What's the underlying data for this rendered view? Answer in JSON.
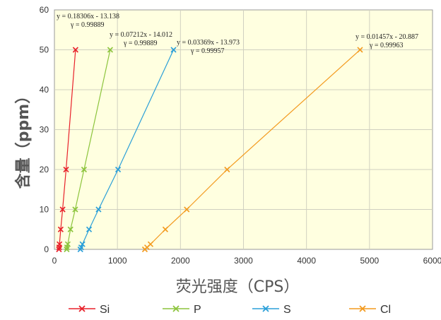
{
  "chart_data": {
    "type": "scatter",
    "xlabel": "荧光强度（CPS）",
    "ylabel": "含量（ppm）",
    "xlim": [
      0,
      6000
    ],
    "ylim": [
      0,
      60
    ],
    "x_ticks": [
      "0",
      "1000",
      "2000",
      "3000",
      "4000",
      "5000",
      "6000"
    ],
    "y_ticks": [
      "0",
      "10",
      "20",
      "30",
      "40",
      "50",
      "60"
    ],
    "grid": true,
    "legend_placement": "bottom",
    "plot_background": "#ffffe0",
    "series": [
      {
        "name": "Si",
        "color": "#e8202a",
        "points": [
          [
            72,
            0
          ],
          [
            76,
            0.5
          ],
          [
            80,
            1.3
          ],
          [
            100,
            5
          ],
          [
            130,
            10
          ],
          [
            185,
            20
          ],
          [
            335,
            50
          ]
        ],
        "equation": "y = 0.18306x - 13.138",
        "r": "γ = 0.99889"
      },
      {
        "name": "P",
        "color": "#8cc43c",
        "points": [
          [
            195,
            0
          ],
          [
            200,
            0.5
          ],
          [
            212,
            1.3
          ],
          [
            255,
            5
          ],
          [
            330,
            10
          ],
          [
            470,
            20
          ],
          [
            885,
            50
          ]
        ],
        "equation": "y = 0.07212x - 14.012",
        "r": "γ = 0.99889"
      },
      {
        "name": "S",
        "color": "#2a9fd8",
        "points": [
          [
            412,
            0
          ],
          [
            425,
            0.5
          ],
          [
            445,
            1.3
          ],
          [
            550,
            5
          ],
          [
            700,
            10
          ],
          [
            1010,
            20
          ],
          [
            1890,
            50
          ]
        ],
        "equation": "y = 0.03369x - 13.973",
        "r": "γ = 0.99957"
      },
      {
        "name": "Cl",
        "color": "#f39a1e",
        "points": [
          [
            1435,
            0
          ],
          [
            1470,
            0.5
          ],
          [
            1525,
            1.3
          ],
          [
            1760,
            5
          ],
          [
            2100,
            10
          ],
          [
            2740,
            20
          ],
          [
            4850,
            50
          ]
        ],
        "equation": "y = 0.01457x - 20.887",
        "r": "γ = 0.99963"
      }
    ]
  }
}
